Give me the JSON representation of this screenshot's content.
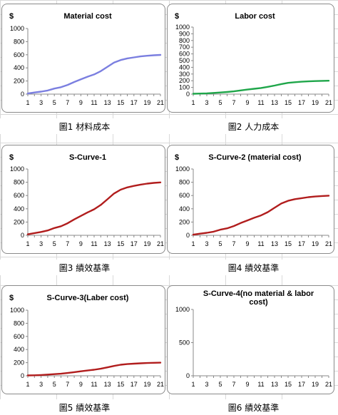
{
  "chart_data": [
    {
      "type": "line",
      "title": "Material cost",
      "ylabel": "$",
      "ylim": [
        0,
        1000
      ],
      "yticks": [
        0,
        200,
        400,
        600,
        800,
        1000
      ],
      "x": [
        1,
        2,
        3,
        4,
        5,
        6,
        7,
        8,
        9,
        10,
        11,
        12,
        13,
        14,
        15,
        16,
        17,
        18,
        19,
        20,
        21
      ],
      "xticks": [
        1,
        3,
        5,
        7,
        9,
        11,
        13,
        15,
        17,
        19,
        21
      ],
      "grid": false,
      "series": [
        {
          "color": "#7b7fe0",
          "values": [
            10,
            25,
            38,
            55,
            85,
            105,
            140,
            185,
            225,
            265,
            300,
            350,
            415,
            480,
            520,
            545,
            560,
            575,
            585,
            592,
            598
          ]
        }
      ],
      "caption": "圖1 材料成本"
    },
    {
      "type": "line",
      "title": "Labor cost",
      "ylabel": "$",
      "ylim": [
        0,
        1000
      ],
      "yticks": [
        0,
        100,
        200,
        300,
        400,
        500,
        600,
        700,
        800,
        900,
        1000
      ],
      "x": [
        1,
        2,
        3,
        4,
        5,
        6,
        7,
        8,
        9,
        10,
        11,
        12,
        13,
        14,
        15,
        16,
        17,
        18,
        19,
        20,
        21
      ],
      "xticks": [
        1,
        3,
        5,
        7,
        9,
        11,
        13,
        15,
        17,
        19,
        21
      ],
      "grid": false,
      "series": [
        {
          "color": "#1fa64a",
          "values": [
            5,
            8,
            12,
            18,
            25,
            32,
            42,
            55,
            68,
            80,
            92,
            108,
            128,
            150,
            168,
            178,
            185,
            190,
            195,
            198,
            200
          ]
        }
      ],
      "caption": "圖2 人力成本"
    },
    {
      "type": "line",
      "title": "S-Curve-1",
      "ylabel": "$",
      "ylim": [
        0,
        1000
      ],
      "yticks": [
        0,
        200,
        400,
        600,
        800,
        1000
      ],
      "x": [
        1,
        2,
        3,
        4,
        5,
        6,
        7,
        8,
        9,
        10,
        11,
        12,
        13,
        14,
        15,
        16,
        17,
        18,
        19,
        20,
        21
      ],
      "xticks": [
        1,
        3,
        5,
        7,
        9,
        11,
        13,
        15,
        17,
        19,
        21
      ],
      "grid": false,
      "series": [
        {
          "color": "#b11d1d",
          "values": [
            15,
            33,
            50,
            73,
            110,
            137,
            182,
            240,
            293,
            345,
            392,
            458,
            543,
            630,
            688,
            723,
            745,
            765,
            780,
            790,
            798
          ]
        }
      ],
      "caption": "圖3 績效基準"
    },
    {
      "type": "line",
      "title": "S-Curve-2 (material cost)",
      "ylabel": "$",
      "ylim": [
        0,
        1000
      ],
      "yticks": [
        0,
        200,
        400,
        600,
        800,
        1000
      ],
      "x": [
        1,
        2,
        3,
        4,
        5,
        6,
        7,
        8,
        9,
        10,
        11,
        12,
        13,
        14,
        15,
        16,
        17,
        18,
        19,
        20,
        21
      ],
      "xticks": [
        1,
        3,
        5,
        7,
        9,
        11,
        13,
        15,
        17,
        19,
        21
      ],
      "grid": false,
      "series": [
        {
          "color": "#b11d1d",
          "values": [
            10,
            25,
            38,
            55,
            85,
            105,
            140,
            185,
            225,
            265,
            300,
            350,
            415,
            480,
            520,
            545,
            560,
            575,
            585,
            592,
            598
          ]
        }
      ],
      "caption": "圖4 績效基準"
    },
    {
      "type": "line",
      "title": "S-Curve-3(Laber cost)",
      "ylabel": "$",
      "ylim": [
        0,
        1000
      ],
      "yticks": [
        0,
        200,
        400,
        600,
        800,
        1000
      ],
      "x": [
        1,
        2,
        3,
        4,
        5,
        6,
        7,
        8,
        9,
        10,
        11,
        12,
        13,
        14,
        15,
        16,
        17,
        18,
        19,
        20,
        21
      ],
      "xticks": [
        1,
        3,
        5,
        7,
        9,
        11,
        13,
        15,
        17,
        19,
        21
      ],
      "grid": false,
      "series": [
        {
          "color": "#b11d1d",
          "values": [
            5,
            8,
            12,
            18,
            25,
            32,
            42,
            55,
            68,
            80,
            92,
            108,
            128,
            150,
            168,
            178,
            185,
            190,
            195,
            198,
            200
          ]
        }
      ],
      "caption": "圖5 績效基準"
    },
    {
      "type": "line",
      "title": "S-Curve-4(no  material & labor cost)",
      "ylabel": "",
      "ylim": [
        0,
        1000
      ],
      "yticks": [
        0,
        500,
        1000
      ],
      "x": [
        1,
        2,
        3,
        4,
        5,
        6,
        7,
        8,
        9,
        10,
        11,
        12,
        13,
        14,
        15,
        16,
        17,
        18,
        19,
        20,
        21
      ],
      "xticks": [
        1,
        3,
        5,
        7,
        9,
        11,
        13,
        15,
        17,
        19,
        21
      ],
      "grid": false,
      "series": [],
      "caption": "圖6 績效基準"
    }
  ]
}
